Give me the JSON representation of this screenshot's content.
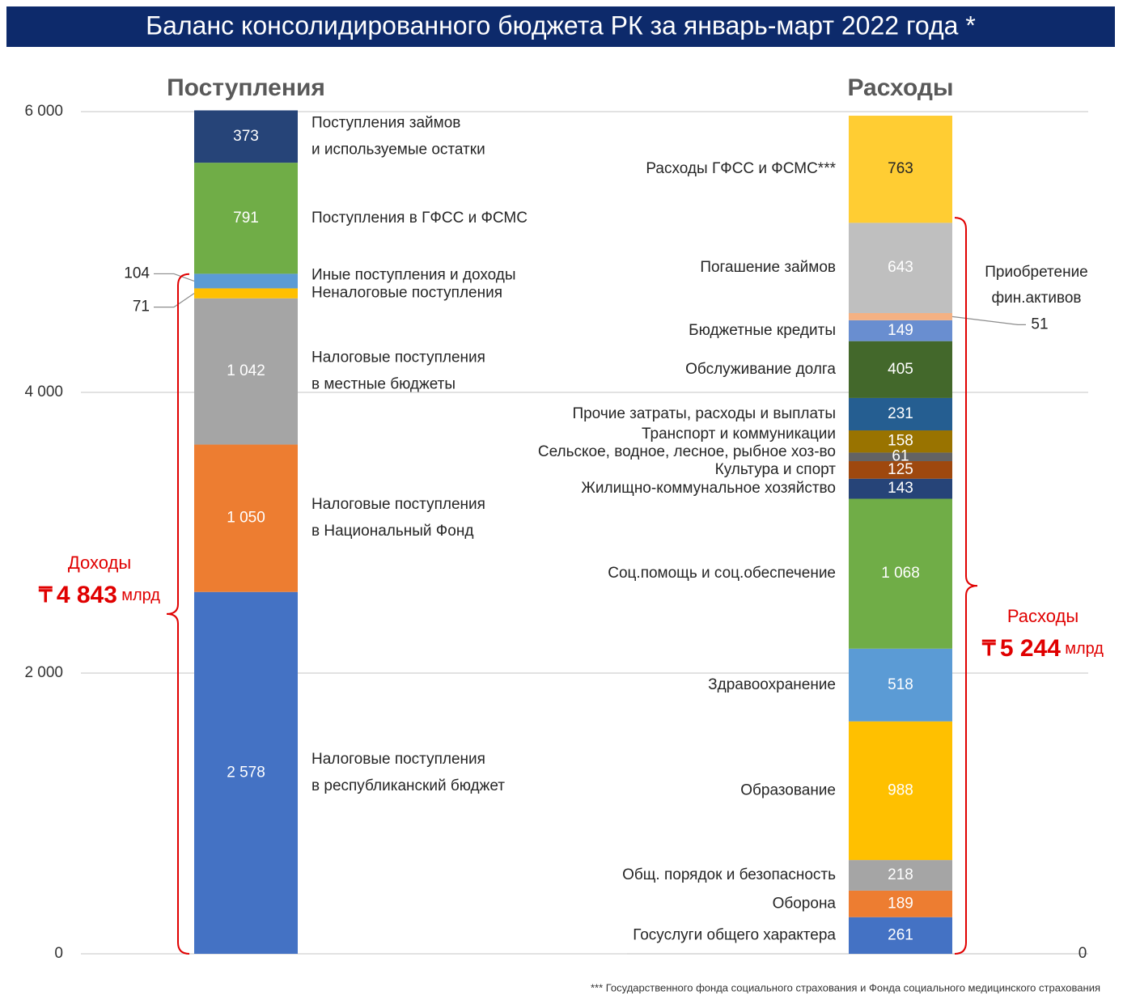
{
  "title": "Баланс консолидированного бюджета РК за январь-март 2022 года *",
  "footnote": "*** Государственного фонда социального страхования и Фонда социального медицинского страхования",
  "chart_data": [
    {
      "type": "bar",
      "stacked": true,
      "title": "Поступления",
      "ylim": [
        0,
        6000
      ],
      "yticks": [
        0,
        {
          "value": 2000,
          "label": "2 000"
        },
        {
          "value": 4000,
          "label": "4 000"
        },
        {
          "value": 6000,
          "label": "6 000"
        }
      ],
      "grid": true,
      "series": [
        {
          "name": [
            "Налоговые поступления",
            "в республиканский бюджет"
          ],
          "color": "#4472c4",
          "values": [
            2578
          ],
          "value_labels": [
            "2 578"
          ]
        },
        {
          "name": [
            "Налоговые поступления",
            "в Национальный Фонд"
          ],
          "color": "#ed7d31",
          "values": [
            1050
          ],
          "value_labels": [
            "1 050"
          ]
        },
        {
          "name": [
            "Налоговые поступления",
            "в местные бюджеты"
          ],
          "color": "#a5a5a5",
          "values": [
            1042
          ],
          "value_labels": [
            "1 042"
          ]
        },
        {
          "name": [
            "Неналоговые поступления"
          ],
          "color": "#ffc000",
          "values": [
            71
          ],
          "label_position": "outside"
        },
        {
          "name": [
            "Иные поступления и доходы"
          ],
          "color": "#5b9bd5",
          "values": [
            104
          ],
          "label_position": "outside"
        },
        {
          "name": [
            "Поступления в ГФСС и ФСМС"
          ],
          "color": "#70ad47",
          "values": [
            791
          ]
        },
        {
          "name": [
            "Поступления займов",
            "и используемые остатки"
          ],
          "color": "#264478",
          "values": [
            373
          ]
        }
      ],
      "bracket": {
        "label": "Доходы",
        "currency": "₸",
        "value": 4843,
        "value_label": "4 843",
        "unit": "млрд"
      }
    },
    {
      "type": "bar",
      "stacked": true,
      "title": "Расходы",
      "ylim": [
        0,
        6000
      ],
      "yticks": [
        0
      ],
      "series": [
        {
          "name": [
            "Госуслуги общего характера"
          ],
          "color": "#4472c4",
          "values": [
            261
          ]
        },
        {
          "name": [
            "Оборона"
          ],
          "color": "#ed7d31",
          "values": [
            189
          ]
        },
        {
          "name": [
            "Общ. порядок и безопасность"
          ],
          "color": "#a5a5a5",
          "values": [
            218
          ]
        },
        {
          "name": [
            "Образование"
          ],
          "color": "#ffc000",
          "values": [
            988
          ]
        },
        {
          "name": [
            "Здравоохранение"
          ],
          "color": "#5b9bd5",
          "values": [
            518
          ]
        },
        {
          "name": [
            "Соц.помощь и соц.обеспечение"
          ],
          "color": "#70ad47",
          "values": [
            1068
          ],
          "value_labels": [
            "1 068"
          ]
        },
        {
          "name": [
            "Жилищно-коммунальное хозяйство"
          ],
          "color": "#264478",
          "values": [
            143
          ]
        },
        {
          "name": [
            "Культура и спорт"
          ],
          "color": "#9e480e",
          "values": [
            125
          ]
        },
        {
          "name": [
            "Сельское, водное, лесное, рыбное хоз-во"
          ],
          "color": "#636363",
          "values": [
            61
          ]
        },
        {
          "name": [
            "Транспорт и коммуникации"
          ],
          "color": "#997300",
          "values": [
            158
          ]
        },
        {
          "name": [
            "Прочие затраты, расходы и выплаты"
          ],
          "color": "#255e91",
          "values": [
            231
          ]
        },
        {
          "name": [
            "Обслуживание долга"
          ],
          "color": "#43682b",
          "values": [
            405
          ]
        },
        {
          "name": [
            "Бюджетные кредиты"
          ],
          "color": "#698ed0",
          "values": [
            149
          ]
        },
        {
          "color": "#f4b183",
          "values": [
            51
          ],
          "label_position": "outside"
        },
        {
          "name": [
            "Погашение займов"
          ],
          "color": "#bfbfbf",
          "values": [
            643
          ]
        },
        {
          "name": [
            "Расходы ГФСС и ФСМС***"
          ],
          "color": "#ffcd33",
          "values": [
            763
          ],
          "label_color": "#262626"
        }
      ],
      "annotation": [
        "Приобретение",
        "фин.активов"
      ],
      "bracket": {
        "label": "Расходы",
        "currency": "₸",
        "value": 5244,
        "value_label": "5 244",
        "unit": "млрд"
      }
    }
  ]
}
